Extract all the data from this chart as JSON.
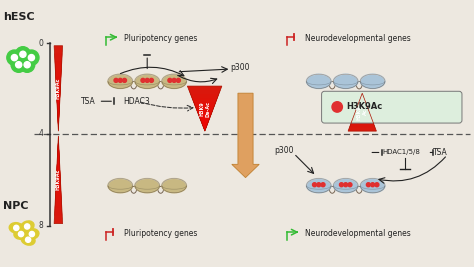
{
  "bg_color": "#ede8e0",
  "hesc_label": "hESC",
  "npc_label": "NPC",
  "h3k9ac_legend_text": "H3K9Ac",
  "pluripotency_label": "Pluripotency genes",
  "neurodevelopmental_label": "Neurodevelopmental genes",
  "green_color": "#33bb33",
  "red_color": "#cc2222",
  "blue_nuc_color": "#aac4d8",
  "tan_nuc_color": "#c8b882",
  "red_tri_color": "#dd1111",
  "big_arrow_color": "#dfa060",
  "text_color": "#222222",
  "dashed_color": "#555555",
  "axis_color": "#333333",
  "legend_fill": "#ddeedd",
  "legend_edge": "#777777"
}
